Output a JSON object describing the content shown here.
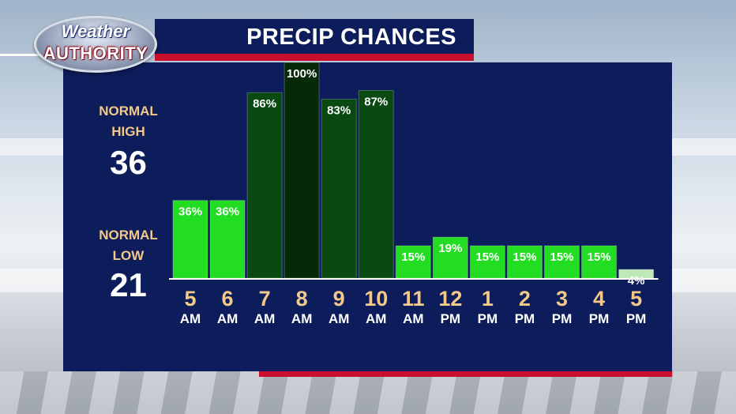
{
  "logo": {
    "line1": "Weather",
    "line2": "AUTHORITY"
  },
  "title": "PRECIP CHANCES",
  "normals": {
    "high_label_1": "NORMAL",
    "high_label_2": "HIGH",
    "high_value": "36",
    "low_label_1": "NORMAL",
    "low_label_2": "LOW",
    "low_value": "21"
  },
  "colors": {
    "panel": "#0d1c5a",
    "accent_red": "#c8102e",
    "label_tan": "#f2c98a",
    "bar_bright": "#22dd22",
    "bar_dark": "#0a4a12",
    "bar_darkest": "#052a08",
    "bar_pale": "#bfe8b8"
  },
  "chart_data": {
    "type": "bar",
    "title": "PRECIP CHANCES",
    "categories": [
      {
        "hour": "5",
        "period": "AM"
      },
      {
        "hour": "6",
        "period": "AM"
      },
      {
        "hour": "7",
        "period": "AM"
      },
      {
        "hour": "8",
        "period": "AM"
      },
      {
        "hour": "9",
        "period": "AM"
      },
      {
        "hour": "10",
        "period": "AM"
      },
      {
        "hour": "11",
        "period": "AM"
      },
      {
        "hour": "12",
        "period": "PM"
      },
      {
        "hour": "1",
        "period": "PM"
      },
      {
        "hour": "2",
        "period": "PM"
      },
      {
        "hour": "3",
        "period": "PM"
      },
      {
        "hour": "4",
        "period": "PM"
      },
      {
        "hour": "5",
        "period": "PM"
      }
    ],
    "values": [
      36,
      36,
      86,
      100,
      83,
      87,
      15,
      19,
      15,
      15,
      15,
      15,
      4
    ],
    "value_labels": [
      "36%",
      "36%",
      "86%",
      "100%",
      "83%",
      "87%",
      "15%",
      "19%",
      "15%",
      "15%",
      "15%",
      "15%",
      "4%"
    ],
    "bar_colors": [
      "#22dd22",
      "#22dd22",
      "#0a4a12",
      "#052a08",
      "#0a4a12",
      "#0a4a12",
      "#22dd22",
      "#22dd22",
      "#22dd22",
      "#22dd22",
      "#22dd22",
      "#22dd22",
      "#bfe8b8"
    ],
    "ylim": [
      0,
      100
    ],
    "grid": false,
    "xlabel": "",
    "ylabel": ""
  }
}
